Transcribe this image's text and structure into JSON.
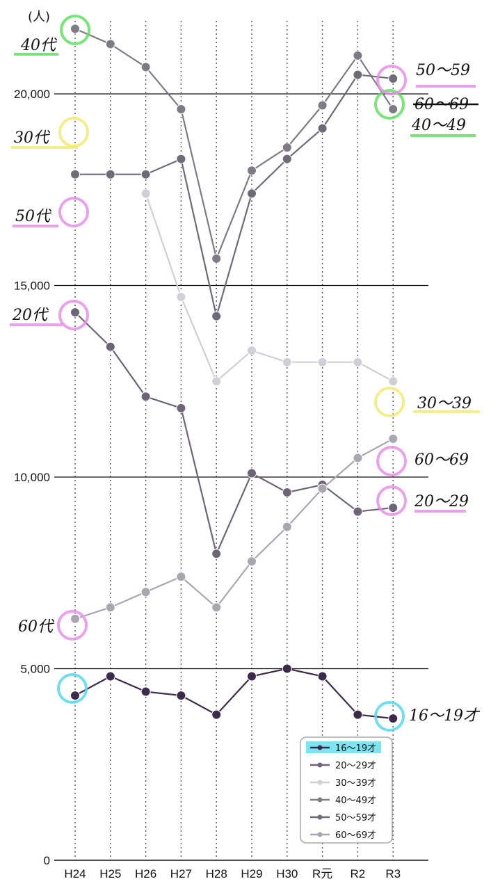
{
  "chart_data": {
    "type": "line",
    "unit_label": "(人)",
    "categories": [
      "H24",
      "H25",
      "H26",
      "H27",
      "H28",
      "H29",
      "H30",
      "R元",
      "R2",
      "R3"
    ],
    "ylim": [
      0,
      22000
    ],
    "yticks": [
      "0",
      "5,000",
      "10,000",
      "15,000",
      "20,000"
    ],
    "grid": "horizontal solid at ticks, vertical dotted at categories",
    "legend": {
      "placement": "bottom-right",
      "entries": [
        "16～19才",
        "20～29才",
        "30～39才",
        "40～49才",
        "50～59才",
        "60～69才"
      ]
    },
    "series": [
      {
        "name": "16～19才",
        "color": "#3b2a4a",
        "values": [
          4300,
          4800,
          4400,
          4300,
          3800,
          4800,
          5000,
          4800,
          3800,
          3700
        ]
      },
      {
        "name": "20～29才",
        "color": "#6e6478",
        "values": [
          14300,
          13400,
          12100,
          11800,
          8000,
          10100,
          9600,
          9800,
          9100,
          9200
        ]
      },
      {
        "name": "30～39才",
        "color": "#d0ced6",
        "values": [
          null,
          null,
          17400,
          14700,
          12500,
          13300,
          13000,
          13000,
          13000,
          12500
        ]
      },
      {
        "name": "40～49才",
        "color": "#7e7a86",
        "values": [
          21700,
          21300,
          20700,
          19600,
          15700,
          18000,
          18600,
          19700,
          21000,
          19600
        ]
      },
      {
        "name": "50～59才",
        "color": "#6f6a78",
        "values": [
          17900,
          17900,
          17900,
          18300,
          14200,
          17400,
          18300,
          19100,
          20500,
          20400
        ]
      },
      {
        "name": "60～69才",
        "color": "#a9a6b0",
        "values": [
          6300,
          6600,
          7000,
          7400,
          6600,
          7800,
          8700,
          9700,
          10500,
          11000
        ]
      }
    ],
    "annotations": {
      "left": [
        "40代",
        "30代",
        "50代",
        "20代",
        "60代"
      ],
      "right": [
        "50～59",
        "60～69",
        "40～49",
        "30～39",
        "60～69",
        "20～29",
        "16～19才"
      ]
    }
  }
}
